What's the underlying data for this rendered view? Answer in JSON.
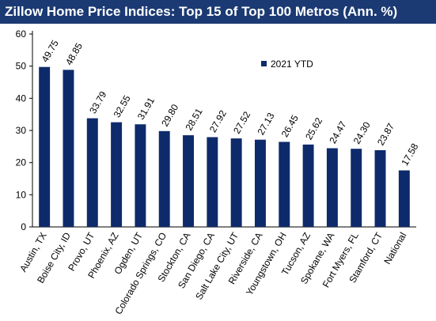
{
  "chart_data": {
    "type": "bar",
    "title": "Zillow Home Price Indices: Top 15 of Top 100 Metros (Ann. %)",
    "categories": [
      "Austin, TX",
      "Boise City, ID",
      "Provo, UT",
      "Phoenix, AZ",
      "Ogden, UT",
      "Colorado Springs, CO",
      "Stockton, CA",
      "San Diego, CA",
      "Salt Lake City, UT",
      "Riverside, CA",
      "Youngstown, OH",
      "Tucson, AZ",
      "Spokane, WA",
      "Fort Myers, FL",
      "Stamford, CT",
      "National"
    ],
    "series": [
      {
        "name": "2021 YTD",
        "values": [
          49.75,
          48.85,
          33.79,
          32.55,
          31.91,
          29.8,
          28.51,
          27.92,
          27.52,
          27.13,
          26.45,
          25.62,
          24.47,
          24.3,
          23.87,
          17.58
        ],
        "labels": [
          "49.75",
          "48.85",
          "33.79",
          "32.55",
          "31.91",
          "29.80",
          "28.51",
          "27.92",
          "27.52",
          "27.13",
          "26.45",
          "25.62",
          "24.47",
          "24.30",
          "23.87",
          "17.58"
        ]
      }
    ],
    "ylim": [
      0,
      60
    ],
    "yticks": [
      "0",
      "10",
      "20",
      "30",
      "40",
      "50",
      "60"
    ],
    "xlabel": "",
    "ylabel": "",
    "grid": false,
    "legend_position": "top-right",
    "colors": {
      "bar": "#0d2a6b",
      "title_bg": "#1b3a73",
      "title_text": "#ffffff",
      "axis": "#000000"
    }
  }
}
